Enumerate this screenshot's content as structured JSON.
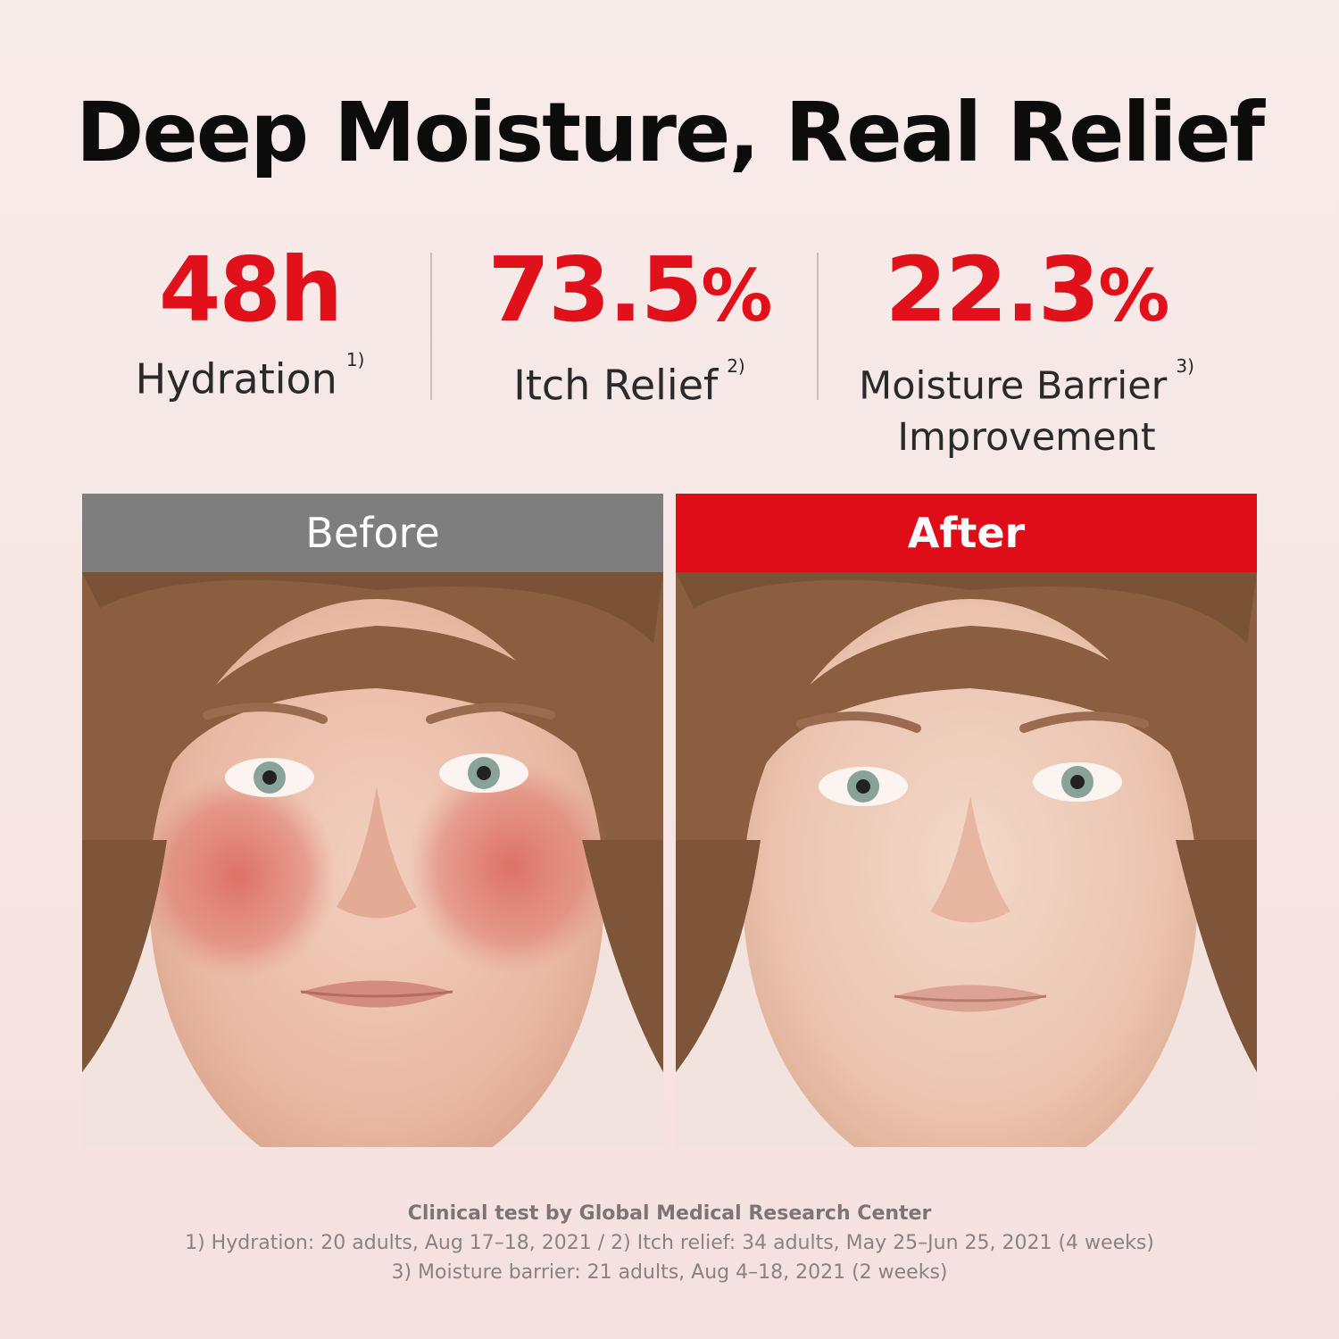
{
  "headline": "Deep Moisture, Real Relief",
  "stats": [
    {
      "value": "48h",
      "unit": "",
      "label": "Hydration",
      "note": "1)"
    },
    {
      "value": "73.5",
      "unit": "%",
      "label": "Itch Relief",
      "note": "2)"
    },
    {
      "value": "22.3",
      "unit": "%",
      "label": "Moisture Barrier",
      "label2": "Improvement",
      "note": "3)"
    }
  ],
  "comparison": {
    "before_label": "Before",
    "after_label": "After"
  },
  "footnotes": {
    "source": "Clinical test by Global Medical Research Center",
    "line1": "1) Hydration: 20 adults, Aug 17–18, 2021 / 2) Itch relief: 34 adults, May 25–Jun 25, 2021 (4 weeks)",
    "line2": "3) Moisture barrier: 21 adults, Aug 4–18, 2021 (2 weeks)"
  },
  "colors": {
    "accent": "#df0d18",
    "before_header": "#7e7e7e",
    "background": "#f6e6e4"
  }
}
